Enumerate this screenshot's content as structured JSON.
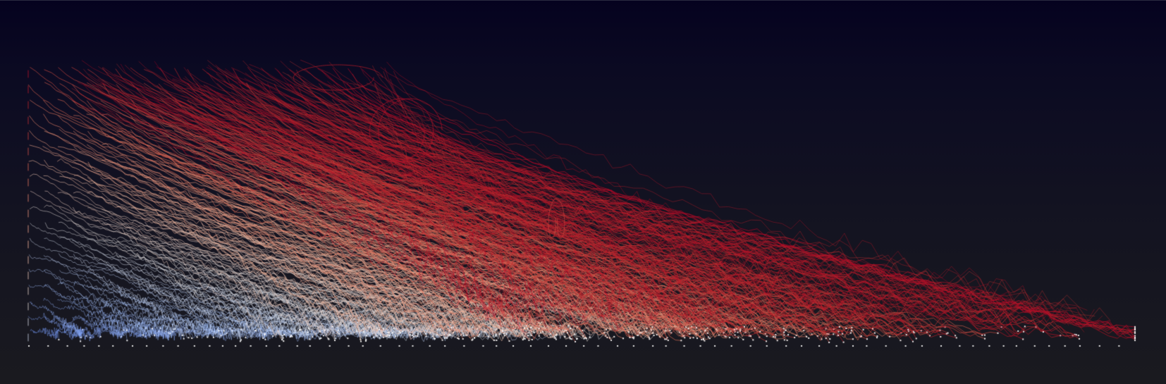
{
  "visualization": {
    "kind": "particle-trajectory-render",
    "colormap": [
      "#3b4cc0",
      "#6f92f3",
      "#aac7fd",
      "#dddcdc",
      "#f7b89c",
      "#e7745b",
      "#c0282c",
      "#b40426"
    ],
    "background_top": "#05021f",
    "background_bottom": "#1a1a1f",
    "marker_color": "#ffffff"
  }
}
